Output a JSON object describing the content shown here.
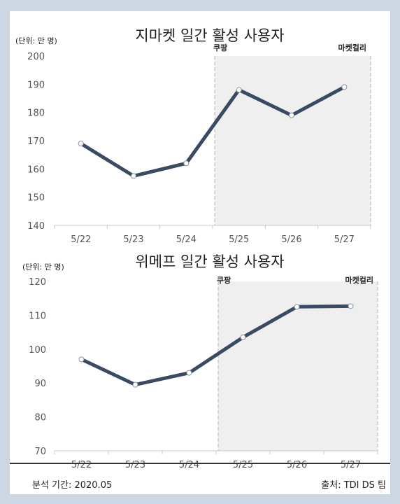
{
  "footer": {
    "period": "분석 기간: 2020.05",
    "source": "출처: TDI DS 팀"
  },
  "chart_data": [
    {
      "type": "line",
      "title": "지마켓 일간 활성 사용자",
      "unit_label": "(단위: 만 명)",
      "categories": [
        "5/22",
        "5/23",
        "5/24",
        "5/25",
        "5/26",
        "5/27"
      ],
      "values": [
        169,
        157.5,
        162,
        188,
        179,
        189
      ],
      "ylim": [
        140,
        200
      ],
      "yticks": [
        140,
        150,
        160,
        170,
        180,
        190,
        200
      ],
      "highlight_start": "5/25",
      "annotations": [
        "쿠팡",
        "마켓컬리"
      ],
      "line_color": "#3b4a63"
    },
    {
      "type": "line",
      "title": "위메프 일간 활성 사용자",
      "unit_label": "(단위: 만 명)",
      "categories": [
        "5/22",
        "5/23",
        "5/24",
        "5/25",
        "5/26",
        "5/27"
      ],
      "values": [
        97,
        89.5,
        93,
        103.5,
        112.5,
        112.7
      ],
      "ylim": [
        70,
        120
      ],
      "yticks": [
        70,
        80,
        90,
        100,
        110,
        120
      ],
      "highlight_start": "5/25",
      "annotations": [
        "쿠팡",
        "마켓컬리"
      ],
      "line_color": "#3b4a63"
    }
  ]
}
